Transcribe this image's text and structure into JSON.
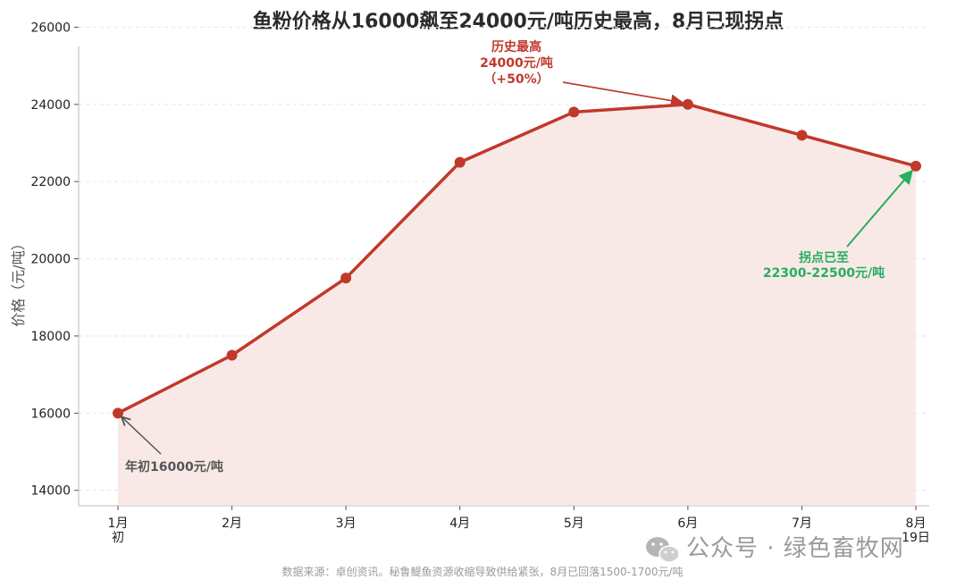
{
  "chart_data": {
    "type": "line",
    "title": "鱼粉价格从16000飙至24000元/吨历史最高，8月已现拐点",
    "ylabel": "价格（元/吨）",
    "xlabel": "",
    "categories": [
      {
        "line1": "1月",
        "line2": "初"
      },
      {
        "line1": "2月",
        "line2": ""
      },
      {
        "line1": "3月",
        "line2": ""
      },
      {
        "line1": "4月",
        "line2": ""
      },
      {
        "line1": "5月",
        "line2": ""
      },
      {
        "line1": "6月",
        "line2": ""
      },
      {
        "line1": "7月",
        "line2": ""
      },
      {
        "line1": "8月",
        "line2": "19日"
      }
    ],
    "values": [
      16000,
      17500,
      19500,
      22500,
      23800,
      24000,
      23200,
      22400
    ],
    "ylim": [
      13600,
      25500
    ],
    "yticks": [
      14000,
      16000,
      18000,
      20000,
      22000,
      24000,
      26000
    ],
    "grid": true,
    "line_color": "#c0392b",
    "fill_color": "#f6e1df",
    "annotations": {
      "peak": {
        "lines": [
          "历史最高",
          "24000元/吨",
          "（+50%）"
        ],
        "color": "#c0392b",
        "target_index": 5
      },
      "inflection": {
        "lines": [
          "拐点已至",
          "22300-22500元/吨"
        ],
        "color": "#27ae60",
        "target_index": 7
      },
      "start": {
        "lines": [
          "年初16000元/吨"
        ],
        "color": "#555555",
        "target_index": 0
      }
    },
    "source_note": "数据来源：卓创资讯。秘鲁鳀鱼资源收缩导致供给紧张，8月已回落1500-1700元/吨"
  },
  "watermark": {
    "text": "公众号 · 绿色畜牧网",
    "icon": "wechat-icon"
  }
}
